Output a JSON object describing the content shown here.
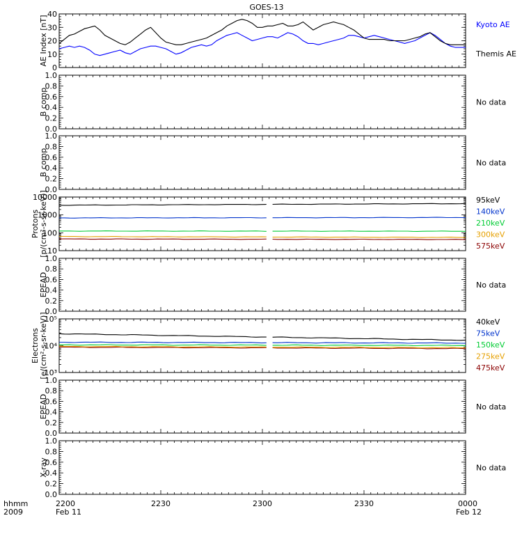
{
  "title": "GOES-13",
  "x_axis": {
    "corner_labels": [
      "hhmm",
      "2009"
    ],
    "ticks": [
      "2200",
      "2230",
      "2300",
      "2330",
      "0000"
    ],
    "day_labels": [
      "Feb 11",
      "Feb 12"
    ]
  },
  "chart_data": [
    {
      "type": "line",
      "ylabel": "AE Index [nT]",
      "ylim": [
        0,
        40
      ],
      "yticks": [
        0,
        10,
        20,
        30,
        40
      ],
      "series": [
        {
          "name": "Kyoto AE",
          "color": "#0000ff",
          "values": [
            14,
            15,
            16,
            15,
            16,
            15,
            13,
            10,
            9,
            10,
            11,
            12,
            13,
            11,
            10,
            12,
            14,
            15,
            16,
            16,
            15,
            14,
            12,
            10,
            11,
            13,
            15,
            16,
            17,
            16,
            17,
            20,
            22,
            24,
            25,
            26,
            24,
            22,
            20,
            21,
            22,
            23,
            23,
            22,
            24,
            26,
            25,
            23,
            20,
            18,
            18,
            17,
            18,
            19,
            20,
            21,
            22,
            24,
            24,
            23,
            22,
            23,
            24,
            23,
            22,
            21,
            20,
            19,
            18,
            19,
            20,
            22,
            24,
            26,
            24,
            21,
            18,
            16,
            15,
            15,
            15
          ]
        },
        {
          "name": "Themis AE",
          "color": "#000000",
          "values": [
            18,
            21,
            24,
            25,
            27,
            29,
            30,
            31,
            28,
            24,
            22,
            20,
            18,
            17,
            19,
            22,
            25,
            28,
            30,
            26,
            22,
            19,
            18,
            17,
            17,
            18,
            19,
            20,
            21,
            22,
            24,
            26,
            28,
            31,
            33,
            35,
            36,
            35,
            33,
            30,
            30,
            31,
            31,
            32,
            33,
            31,
            31,
            32,
            34,
            31,
            28,
            30,
            32,
            33,
            34,
            33,
            32,
            30,
            28,
            25,
            22,
            21,
            21,
            21,
            21,
            20,
            20,
            20,
            20,
            21,
            22,
            23,
            25,
            26,
            23,
            20,
            18,
            17,
            17,
            17,
            17
          ]
        }
      ]
    },
    {
      "type": "line",
      "ylabel": "B comp",
      "ylim": [
        0,
        1
      ],
      "yticks": [
        0.0,
        0.2,
        0.4,
        0.6,
        0.8,
        1.0
      ],
      "note": "No data"
    },
    {
      "type": "line",
      "ylabel": "B comp",
      "ylim": [
        0,
        1
      ],
      "yticks": [
        0.0,
        0.2,
        0.4,
        0.6,
        0.8,
        1.0
      ],
      "note": "No data"
    },
    {
      "type": "line",
      "ylabel": "Protons [p/(cm2-s-sr-keV)]",
      "ylabel_lines": [
        "Protons",
        "[p/(cm²-s-sr-keV)]"
      ],
      "scale": "log",
      "ylim": [
        10,
        10000
      ],
      "yticks": [
        10,
        100,
        1000,
        10000
      ],
      "gap": [
        0.51,
        0.525
      ],
      "series": [
        {
          "name": "575keV",
          "color": "#8b0000",
          "start": 45,
          "end": 42
        },
        {
          "name": "300keV",
          "color": "#e6a000",
          "start": 62,
          "end": 55
        },
        {
          "name": "210keV",
          "color": "#00cc33",
          "start": 125,
          "end": 122
        },
        {
          "name": "140keV",
          "color": "#0033cc",
          "start": 680,
          "end": 720
        },
        {
          "name": "95keV",
          "color": "#000000",
          "start": 3500,
          "end": 4300
        }
      ]
    },
    {
      "type": "line",
      "ylabel": "EPEAD",
      "ylim": [
        0,
        1
      ],
      "yticks": [
        0.0,
        0.2,
        0.4,
        0.6,
        0.8,
        1.0
      ],
      "note": "No data"
    },
    {
      "type": "line",
      "ylabel": "Electrons [e/(cm2-s-sr-keV)]",
      "ylabel_lines": [
        "Electrons",
        "[e/(cm²-s-sr-keV)]"
      ],
      "scale": "log",
      "ylim": [
        1000,
        100000
      ],
      "yticks": [
        1000,
        10000,
        100000
      ],
      "tick_labels": [
        "10³",
        "10⁴",
        "10⁵"
      ],
      "gap": [
        0.51,
        0.525
      ],
      "series": [
        {
          "name": "475keV",
          "color": "#8b0000",
          "start": 8800,
          "end": 7800
        },
        {
          "name": "275keV",
          "color": "#e6a000",
          "start": 9400,
          "end": 8400
        },
        {
          "name": "150keV",
          "color": "#00cc33",
          "start": 10800,
          "end": 10200
        },
        {
          "name": "75keV",
          "color": "#0033cc",
          "start": 13500,
          "end": 12500
        },
        {
          "name": "40keV",
          "color": "#000000",
          "start": 28000,
          "end": 16000
        }
      ]
    },
    {
      "type": "line",
      "ylabel": "EPEAD",
      "ylim": [
        0,
        1
      ],
      "yticks": [
        0.0,
        0.2,
        0.4,
        0.6,
        0.8,
        1.0
      ],
      "note": "No data"
    },
    {
      "type": "line",
      "ylabel": "X-ray",
      "ylim": [
        0,
        1
      ],
      "yticks": [
        0.0,
        0.2,
        0.4,
        0.6,
        0.8,
        1.0
      ],
      "note": "No data"
    }
  ]
}
